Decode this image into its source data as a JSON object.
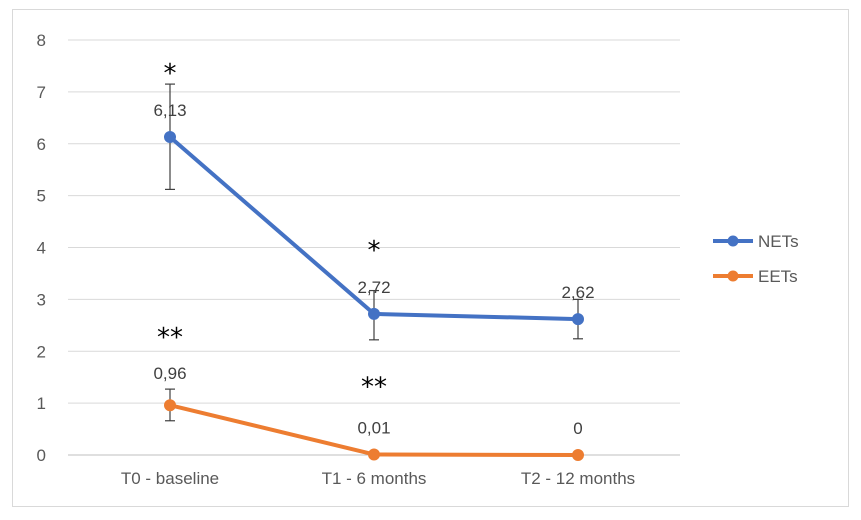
{
  "chart_data": {
    "type": "line",
    "categories": [
      "T0 - baseline",
      "T1 - 6 months",
      "T2 - 12 months"
    ],
    "ylim": [
      0,
      8
    ],
    "yticks": [
      "0",
      "1",
      "2",
      "3",
      "4",
      "5",
      "6",
      "7",
      "8"
    ],
    "grid": true,
    "legend_position": "right",
    "series": [
      {
        "name": "NETs",
        "color": "#4472c4",
        "values": [
          6.13,
          2.72,
          2.62
        ],
        "error_low": [
          5.12,
          2.22,
          2.24
        ],
        "error_high": [
          7.15,
          3.17,
          3.0
        ],
        "labels": [
          "6,13",
          "2,72",
          "2,62"
        ],
        "annotations": [
          "*",
          "*",
          ""
        ]
      },
      {
        "name": "EETs",
        "color": "#ed7d31",
        "values": [
          0.96,
          0.01,
          0
        ],
        "error_low": [
          0.66,
          0.01,
          0
        ],
        "error_high": [
          1.27,
          0.01,
          0
        ],
        "labels": [
          "0,96",
          "0,01",
          "0"
        ],
        "annotations": [
          "**",
          "**",
          ""
        ]
      }
    ]
  }
}
